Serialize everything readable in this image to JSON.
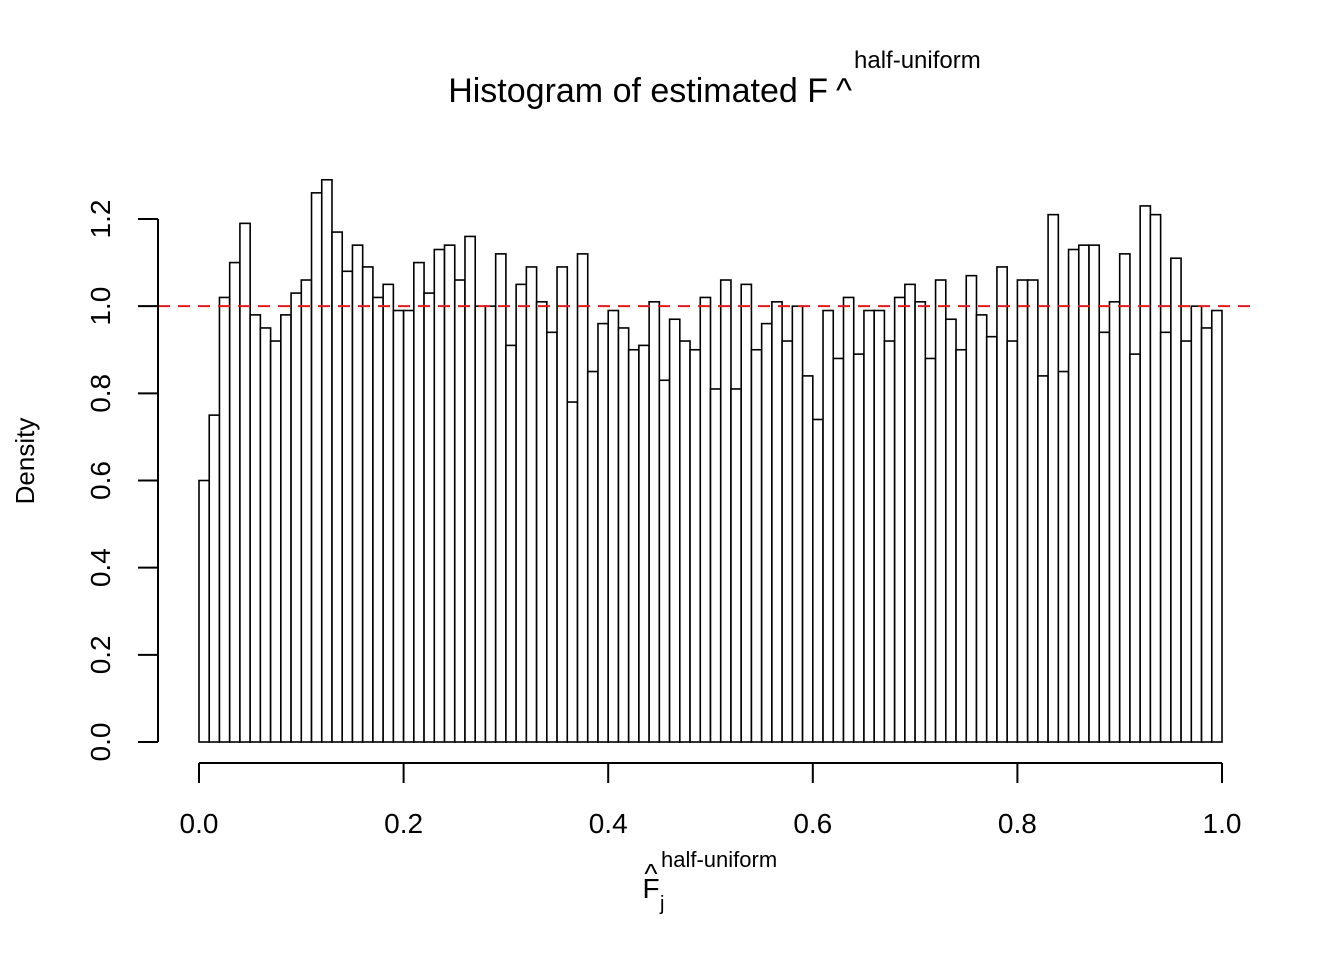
{
  "chart_data": {
    "type": "bar",
    "title": {
      "main": "Histogram of estimated F",
      "hat": "^",
      "superscript": "half-uniform"
    },
    "xlabel": {
      "main": "F",
      "hat": "^",
      "subscript": "j",
      "superscript": "half-uniform"
    },
    "ylabel": "Density",
    "xlim": [
      0,
      1
    ],
    "ylim": [
      0,
      1.3
    ],
    "bin_width": 0.01,
    "bin_start": 0.0,
    "x_ticks": [
      "0.0",
      "0.2",
      "0.4",
      "0.6",
      "0.8",
      "1.0"
    ],
    "y_ticks": [
      "0.0",
      "0.2",
      "0.4",
      "0.6",
      "0.8",
      "1.0",
      "1.2"
    ],
    "reference_line": {
      "y": 1.0,
      "color": "#e41a1c",
      "style": "dashed"
    },
    "bar_fill": "#ffffff",
    "bar_stroke": "#000000",
    "grid": false,
    "legend": "none",
    "values": [
      0.6,
      0.75,
      1.02,
      1.1,
      1.19,
      0.98,
      0.95,
      0.92,
      0.98,
      1.03,
      1.06,
      1.26,
      1.29,
      1.17,
      1.08,
      1.14,
      1.09,
      1.02,
      1.05,
      0.99,
      0.99,
      1.1,
      1.03,
      1.13,
      1.14,
      1.06,
      1.16,
      1.0,
      1.0,
      1.12,
      0.91,
      1.05,
      1.09,
      1.01,
      0.94,
      1.09,
      0.78,
      1.12,
      0.85,
      0.96,
      0.99,
      0.95,
      0.9,
      0.91,
      1.01,
      0.83,
      0.97,
      0.92,
      0.9,
      1.02,
      0.81,
      1.06,
      0.81,
      1.05,
      0.9,
      0.96,
      1.01,
      0.92,
      1.0,
      0.84,
      0.74,
      0.99,
      0.88,
      1.02,
      0.89,
      0.99,
      0.99,
      0.92,
      1.02,
      1.05,
      1.01,
      0.88,
      1.06,
      0.97,
      0.9,
      1.07,
      0.98,
      0.93,
      1.09,
      0.92,
      1.06,
      1.06,
      0.84,
      1.21,
      0.85,
      1.13,
      1.14,
      1.14,
      0.94,
      1.01,
      1.12,
      0.89,
      1.23,
      1.21,
      0.94,
      1.11,
      0.92,
      1.0,
      0.95,
      0.99
    ]
  }
}
